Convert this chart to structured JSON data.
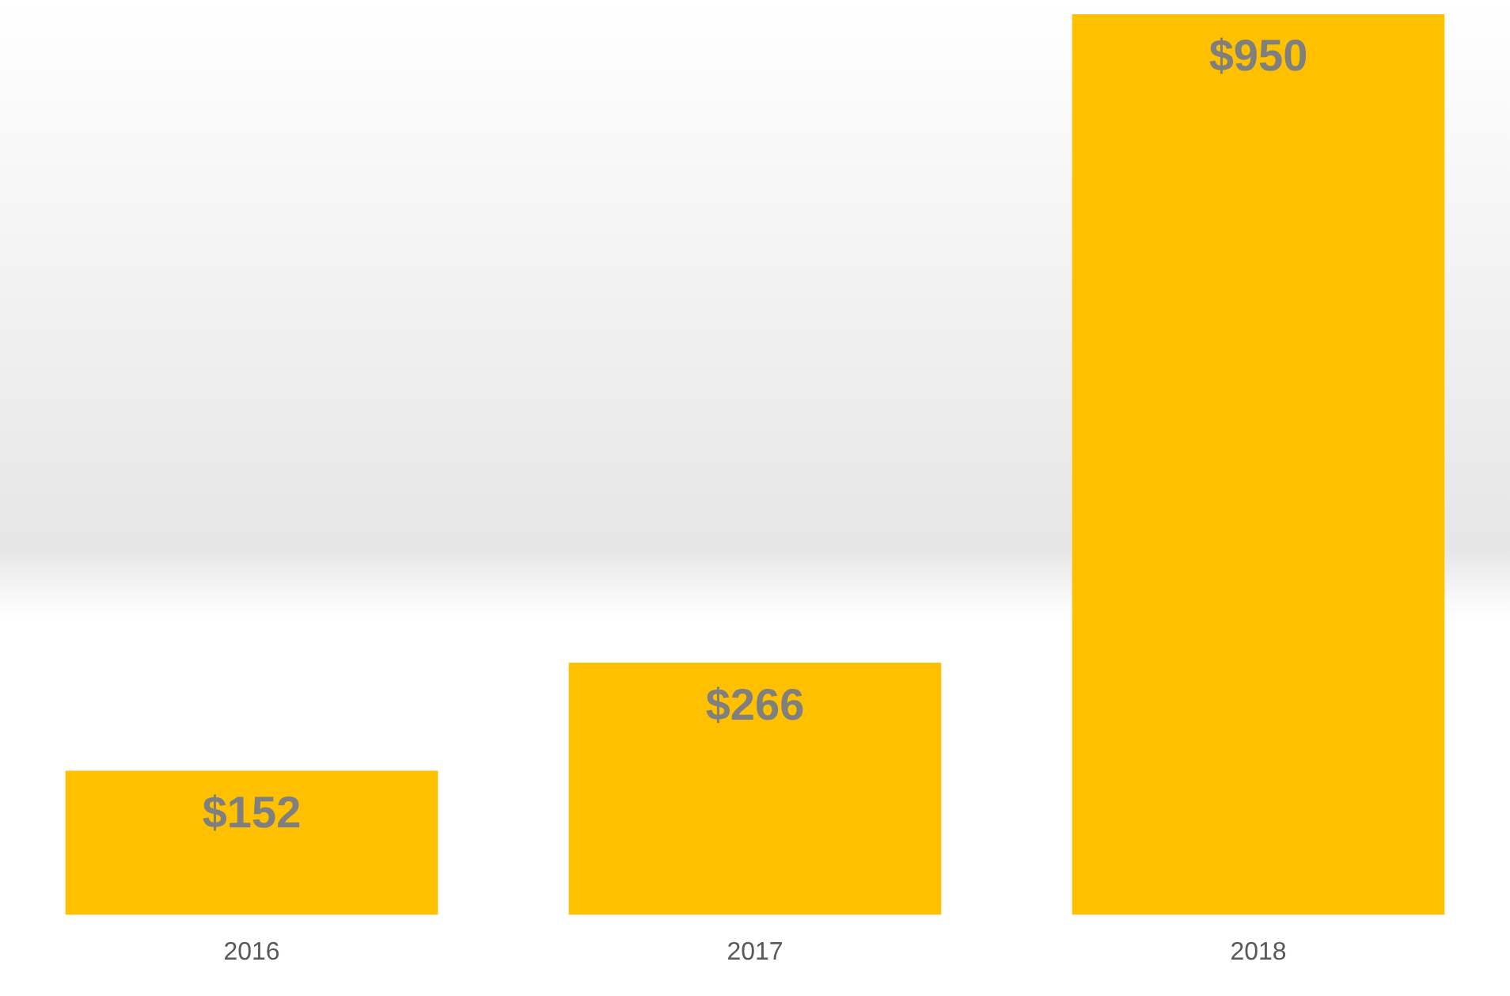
{
  "chart_data": {
    "type": "bar",
    "categories": [
      "2016",
      "2017",
      "2018"
    ],
    "values": [
      152,
      266,
      950
    ],
    "value_labels": [
      "$152",
      "$266",
      "$950"
    ],
    "color": "#ffc000",
    "grid": false,
    "legend": false
  }
}
